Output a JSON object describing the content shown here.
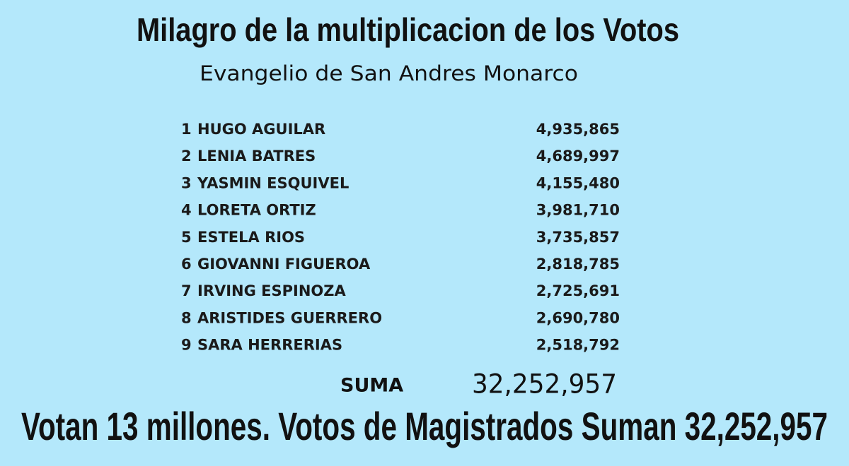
{
  "header": {
    "title": "Milagro de la multiplicacion de los Votos",
    "subtitle": "Evangelio de San Andres Monarco"
  },
  "table": {
    "rows": [
      [
        "1",
        "HUGO AGUILAR",
        "4,935,865"
      ],
      [
        "2",
        "LENIA BATRES",
        "4,689,997"
      ],
      [
        "3",
        "YASMIN ESQUIVEL",
        "4,155,480"
      ],
      [
        "4",
        "LORETA ORTIZ",
        "3,981,710"
      ],
      [
        "5",
        "ESTELA RIOS",
        "3,735,857"
      ],
      [
        "6",
        "GIOVANNI FIGUEROA",
        "2,818,785"
      ],
      [
        "7",
        "IRVING ESPINOZA",
        "2,725,691"
      ],
      [
        "8",
        "ARISTIDES GUERRERO",
        "2,690,780"
      ],
      [
        "9",
        "SARA HERRERIAS",
        "2,518,792"
      ]
    ],
    "total_label": "SUMA",
    "total_value": "32,252,957"
  },
  "footer": {
    "text": "Votan 13 millones. Votos de Magistrados Suman 32,252,957"
  }
}
